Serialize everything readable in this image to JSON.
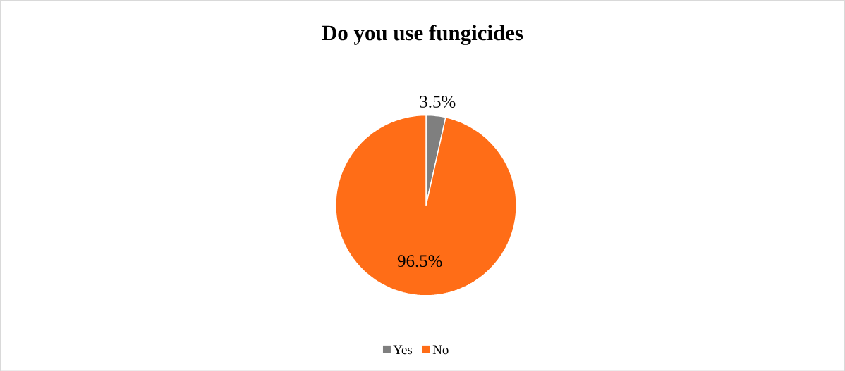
{
  "chart_data": {
    "type": "pie",
    "title": "Do you use fungicides",
    "categories": [
      "Yes",
      "No"
    ],
    "values": [
      3.5,
      96.5
    ],
    "colors": [
      "#7f7f7f",
      "#ff6d17"
    ],
    "value_labels": [
      "3.5%",
      "96.5%"
    ],
    "legend": "bottom"
  }
}
